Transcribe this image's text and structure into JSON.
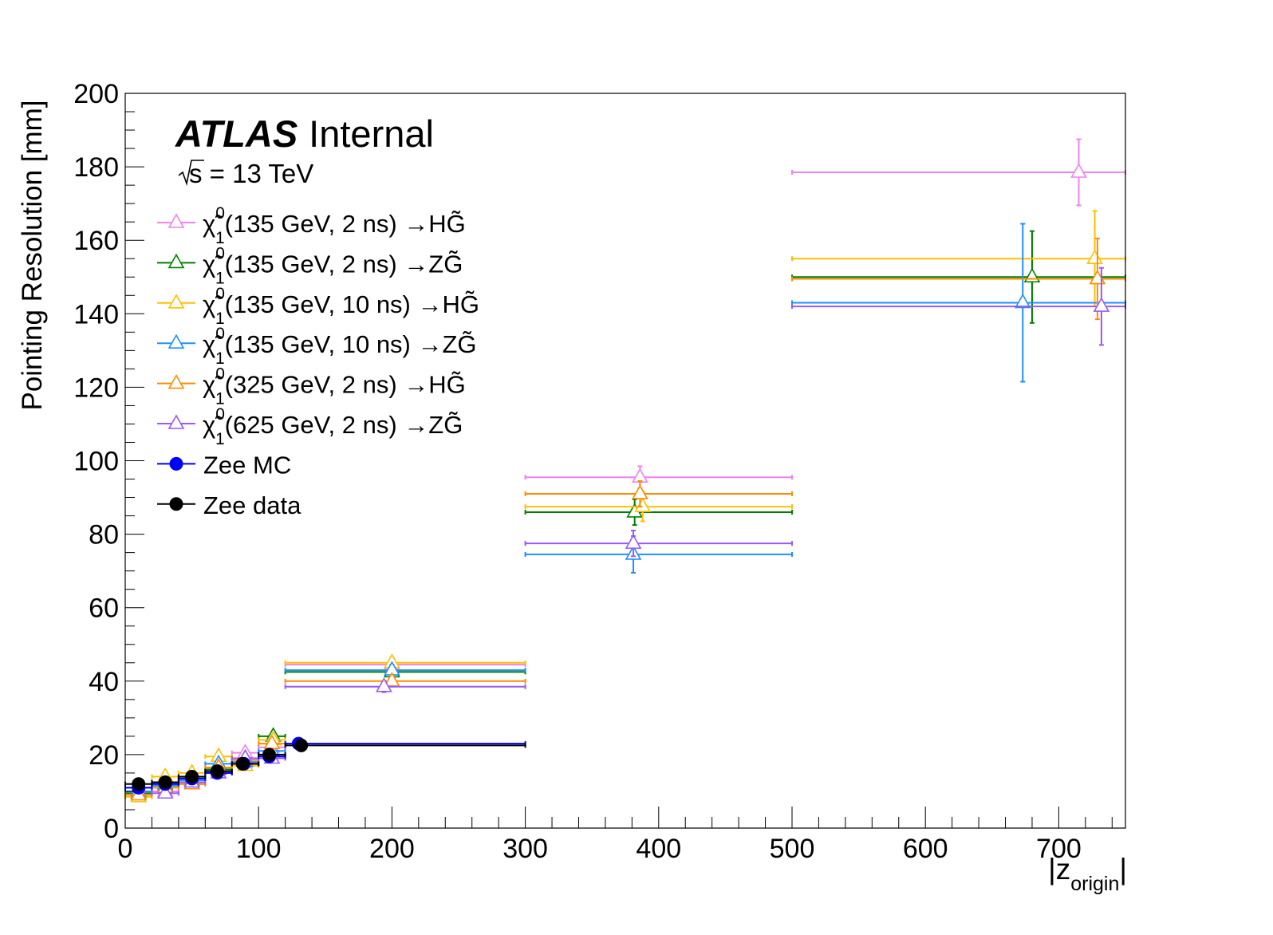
{
  "chart_data": {
    "type": "scatter",
    "xlabel": "|z",
    "xlabel_sub": "origin",
    "xlabel_close": "|",
    "ylabel": "Pointing Resolution [mm]",
    "xlim": [
      0,
      750
    ],
    "ylim": [
      0,
      200
    ],
    "xticks": [
      0,
      100,
      200,
      300,
      400,
      500,
      600,
      700
    ],
    "yticks": [
      0,
      20,
      40,
      60,
      80,
      100,
      120,
      140,
      160,
      180,
      200
    ],
    "grid": false,
    "legend_position": "top-left",
    "atlas_label": "ATLAS",
    "atlas_status": "Internal",
    "energy_label": "s = 13 TeV",
    "series": [
      {
        "name": "(135 GeV, 2 ns) →HG̃",
        "color": "#ee82ee",
        "marker": "open-triangle",
        "points": [
          {
            "x": 10,
            "xlo": 0,
            "xhi": 20,
            "y": 9,
            "err": 0.8
          },
          {
            "x": 30,
            "xlo": 20,
            "xhi": 40,
            "y": 10,
            "err": 0.8
          },
          {
            "x": 50,
            "xlo": 40,
            "xhi": 60,
            "y": 12,
            "err": 0.8
          },
          {
            "x": 70,
            "xlo": 60,
            "xhi": 80,
            "y": 15,
            "err": 1
          },
          {
            "x": 90,
            "xlo": 80,
            "xhi": 100,
            "y": 20.5,
            "err": 1
          },
          {
            "x": 110,
            "xlo": 100,
            "xhi": 120,
            "y": 22,
            "err": 1
          },
          {
            "x": 200,
            "xlo": 120,
            "xhi": 300,
            "y": 44.5,
            "err": 1.5
          },
          {
            "x": 386,
            "xlo": 300,
            "xhi": 500,
            "y": 95.5,
            "err": 3
          },
          {
            "x": 715,
            "xlo": 500,
            "xhi": 750,
            "y": 178.5,
            "err": 9
          }
        ]
      },
      {
        "name": "(135 GeV, 2 ns) →ZG̃",
        "color": "#008000",
        "marker": "open-triangle",
        "points": [
          {
            "x": 10,
            "xlo": 0,
            "xhi": 20,
            "y": 9.5,
            "err": 0.8
          },
          {
            "x": 30,
            "xlo": 20,
            "xhi": 40,
            "y": 12,
            "err": 0.8
          },
          {
            "x": 50,
            "xlo": 40,
            "xhi": 60,
            "y": 13.5,
            "err": 0.8
          },
          {
            "x": 70,
            "xlo": 60,
            "xhi": 80,
            "y": 16,
            "err": 1
          },
          {
            "x": 90,
            "xlo": 80,
            "xhi": 100,
            "y": 19,
            "err": 1
          },
          {
            "x": 111,
            "xlo": 100,
            "xhi": 120,
            "y": 25,
            "err": 1.2
          },
          {
            "x": 200,
            "xlo": 120,
            "xhi": 300,
            "y": 42.5,
            "err": 1.5
          },
          {
            "x": 382,
            "xlo": 300,
            "xhi": 500,
            "y": 86,
            "err": 3.5
          },
          {
            "x": 680,
            "xlo": 500,
            "xhi": 750,
            "y": 150,
            "err": 12.5
          }
        ]
      },
      {
        "name": "(135 GeV, 10 ns) →HG̃",
        "color": "#ffc000",
        "marker": "open-triangle",
        "points": [
          {
            "x": 10,
            "xlo": 0,
            "xhi": 20,
            "y": 8.5,
            "err": 0.8
          },
          {
            "x": 30,
            "xlo": 20,
            "xhi": 40,
            "y": 14,
            "err": 0.8
          },
          {
            "x": 50,
            "xlo": 40,
            "xhi": 60,
            "y": 15,
            "err": 0.8
          },
          {
            "x": 70,
            "xlo": 60,
            "xhi": 80,
            "y": 19.5,
            "err": 1
          },
          {
            "x": 90,
            "xlo": 80,
            "xhi": 100,
            "y": 17,
            "err": 1
          },
          {
            "x": 111,
            "xlo": 100,
            "xhi": 120,
            "y": 24,
            "err": 1.2
          },
          {
            "x": 200,
            "xlo": 120,
            "xhi": 300,
            "y": 45,
            "err": 1.5
          },
          {
            "x": 388,
            "xlo": 300,
            "xhi": 500,
            "y": 87.5,
            "err": 4
          },
          {
            "x": 727,
            "xlo": 500,
            "xhi": 750,
            "y": 155,
            "err": 13
          }
        ]
      },
      {
        "name": "(135 GeV, 10 ns) →ZG̃",
        "color": "#1e90ff",
        "marker": "open-triangle",
        "points": [
          {
            "x": 10,
            "xlo": 0,
            "xhi": 20,
            "y": 10,
            "err": 0.8
          },
          {
            "x": 30,
            "xlo": 20,
            "xhi": 40,
            "y": 11.5,
            "err": 0.8
          },
          {
            "x": 50,
            "xlo": 40,
            "xhi": 60,
            "y": 13,
            "err": 0.8
          },
          {
            "x": 70,
            "xlo": 60,
            "xhi": 80,
            "y": 17.5,
            "err": 1
          },
          {
            "x": 90,
            "xlo": 80,
            "xhi": 100,
            "y": 18,
            "err": 1
          },
          {
            "x": 110,
            "xlo": 100,
            "xhi": 120,
            "y": 21,
            "err": 1
          },
          {
            "x": 200,
            "xlo": 120,
            "xhi": 300,
            "y": 43,
            "err": 1.5
          },
          {
            "x": 381,
            "xlo": 300,
            "xhi": 500,
            "y": 74.5,
            "err": 5
          },
          {
            "x": 673,
            "xlo": 500,
            "xhi": 750,
            "y": 143,
            "err": 21.5
          }
        ]
      },
      {
        "name": "(325 GeV, 2 ns) →HG̃",
        "color": "#ff8c00",
        "marker": "open-triangle",
        "points": [
          {
            "x": 10,
            "xlo": 0,
            "xhi": 20,
            "y": 9,
            "err": 0.8
          },
          {
            "x": 30,
            "xlo": 20,
            "xhi": 40,
            "y": 11,
            "err": 0.8
          },
          {
            "x": 50,
            "xlo": 40,
            "xhi": 60,
            "y": 12,
            "err": 0.8
          },
          {
            "x": 70,
            "xlo": 60,
            "xhi": 80,
            "y": 16.5,
            "err": 1
          },
          {
            "x": 90,
            "xlo": 80,
            "xhi": 100,
            "y": 18.5,
            "err": 1
          },
          {
            "x": 110,
            "xlo": 100,
            "xhi": 120,
            "y": 23,
            "err": 1
          },
          {
            "x": 200,
            "xlo": 120,
            "xhi": 300,
            "y": 40,
            "err": 1.5
          },
          {
            "x": 386,
            "xlo": 300,
            "xhi": 500,
            "y": 91,
            "err": 3.5
          },
          {
            "x": 729,
            "xlo": 500,
            "xhi": 750,
            "y": 149.5,
            "err": 11
          }
        ]
      },
      {
        "name": "(625 GeV, 2 ns) →ZG̃",
        "color": "#9b59f5",
        "marker": "open-triangle",
        "points": [
          {
            "x": 10,
            "xlo": 0,
            "xhi": 20,
            "y": 11,
            "err": 0.8
          },
          {
            "x": 30,
            "xlo": 20,
            "xhi": 40,
            "y": 9.5,
            "err": 0.8
          },
          {
            "x": 50,
            "xlo": 40,
            "xhi": 60,
            "y": 12.5,
            "err": 0.8
          },
          {
            "x": 70,
            "xlo": 60,
            "xhi": 80,
            "y": 15,
            "err": 1
          },
          {
            "x": 90,
            "xlo": 80,
            "xhi": 100,
            "y": 19,
            "err": 1
          },
          {
            "x": 110,
            "xlo": 100,
            "xhi": 120,
            "y": 19,
            "err": 1
          },
          {
            "x": 194,
            "xlo": 120,
            "xhi": 300,
            "y": 38.5,
            "err": 1.5
          },
          {
            "x": 381,
            "xlo": 300,
            "xhi": 500,
            "y": 77.5,
            "err": 3.5
          },
          {
            "x": 732,
            "xlo": 500,
            "xhi": 750,
            "y": 142,
            "err": 10.5
          }
        ]
      },
      {
        "name": "Zee MC",
        "color": "#0000ff",
        "marker": "filled-circle",
        "points": [
          {
            "x": 10,
            "xlo": 0,
            "xhi": 20,
            "y": 11,
            "err": 0.2
          },
          {
            "x": 30,
            "xlo": 20,
            "xhi": 40,
            "y": 12,
            "err": 0.2
          },
          {
            "x": 50,
            "xlo": 40,
            "xhi": 60,
            "y": 13.5,
            "err": 0.2
          },
          {
            "x": 69,
            "xlo": 60,
            "xhi": 80,
            "y": 15,
            "err": 0.2
          },
          {
            "x": 89,
            "xlo": 80,
            "xhi": 100,
            "y": 17.5,
            "err": 0.2
          },
          {
            "x": 108,
            "xlo": 100,
            "xhi": 120,
            "y": 19.5,
            "err": 0.2
          },
          {
            "x": 130,
            "xlo": 120,
            "xhi": 300,
            "y": 23,
            "err": 0.2
          }
        ]
      },
      {
        "name": "Zee data",
        "color": "#000000",
        "marker": "filled-circle",
        "points": [
          {
            "x": 10,
            "xlo": 0,
            "xhi": 20,
            "y": 12,
            "err": 0.2
          },
          {
            "x": 30,
            "xlo": 20,
            "xhi": 40,
            "y": 12.5,
            "err": 0.2
          },
          {
            "x": 50,
            "xlo": 40,
            "xhi": 60,
            "y": 14,
            "err": 0.2
          },
          {
            "x": 69,
            "xlo": 60,
            "xhi": 80,
            "y": 15.5,
            "err": 0.2
          },
          {
            "x": 88,
            "xlo": 80,
            "xhi": 100,
            "y": 17.5,
            "err": 0.2
          },
          {
            "x": 108,
            "xlo": 100,
            "xhi": 120,
            "y": 20,
            "err": 0.2
          },
          {
            "x": 132,
            "xlo": 120,
            "xhi": 300,
            "y": 22.5,
            "err": 0.2
          }
        ]
      }
    ]
  }
}
